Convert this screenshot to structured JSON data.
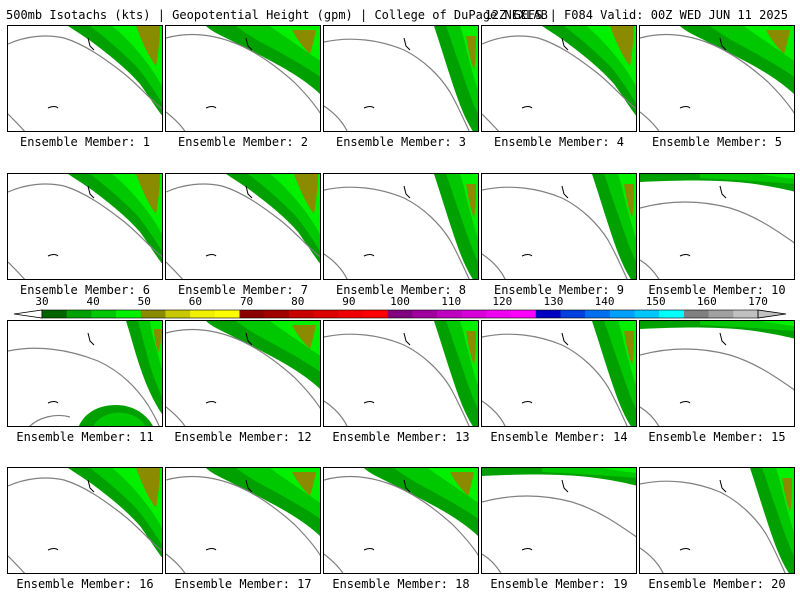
{
  "header": {
    "left": "500mb Isotachs (kts) | Geopotential Height (gpm) | College of DuPage NEXLAB",
    "right": "12Z GEFS | F084 Valid: 00Z WED JUN 11 2025"
  },
  "members": [
    {
      "label": "Ensemble Member: 1"
    },
    {
      "label": "Ensemble Member: 2"
    },
    {
      "label": "Ensemble Member: 3"
    },
    {
      "label": "Ensemble Member: 4"
    },
    {
      "label": "Ensemble Member: 5"
    },
    {
      "label": "Ensemble Member: 6"
    },
    {
      "label": "Ensemble Member: 7"
    },
    {
      "label": "Ensemble Member: 8"
    },
    {
      "label": "Ensemble Member: 9"
    },
    {
      "label": "Ensemble Member: 10"
    },
    {
      "label": "Ensemble Member: 11"
    },
    {
      "label": "Ensemble Member: 12"
    },
    {
      "label": "Ensemble Member: 13"
    },
    {
      "label": "Ensemble Member: 14"
    },
    {
      "label": "Ensemble Member: 15"
    },
    {
      "label": "Ensemble Member: 16"
    },
    {
      "label": "Ensemble Member: 17"
    },
    {
      "label": "Ensemble Member: 18"
    },
    {
      "label": "Ensemble Member: 19"
    },
    {
      "label": "Ensemble Member: 20"
    }
  ],
  "legend": {
    "ticks": [
      "30",
      "40",
      "50",
      "60",
      "70",
      "80",
      "90",
      "100",
      "110",
      "120",
      "130",
      "140",
      "150",
      "160",
      "170"
    ],
    "colors": [
      "#006400",
      "#00a000",
      "#00c800",
      "#00f000",
      "#8b8b00",
      "#c8c800",
      "#f0f000",
      "#ffff00",
      "#8b0000",
      "#a00000",
      "#c80000",
      "#dc0000",
      "#f00000",
      "#ff0000",
      "#800080",
      "#a000a0",
      "#c000c0",
      "#d800d8",
      "#f000f0",
      "#ff00ff",
      "#0000c0",
      "#0040e0",
      "#0070f0",
      "#00a0ff",
      "#00c8ff",
      "#00ffff",
      "#808080",
      "#a0a0a0",
      "#c0c0c0"
    ]
  },
  "map_colors": {
    "band1": "#00a000",
    "band2": "#00c800",
    "band3": "#00f000",
    "band4": "#8b8b00",
    "coast": "#808080",
    "border": "#000000"
  }
}
